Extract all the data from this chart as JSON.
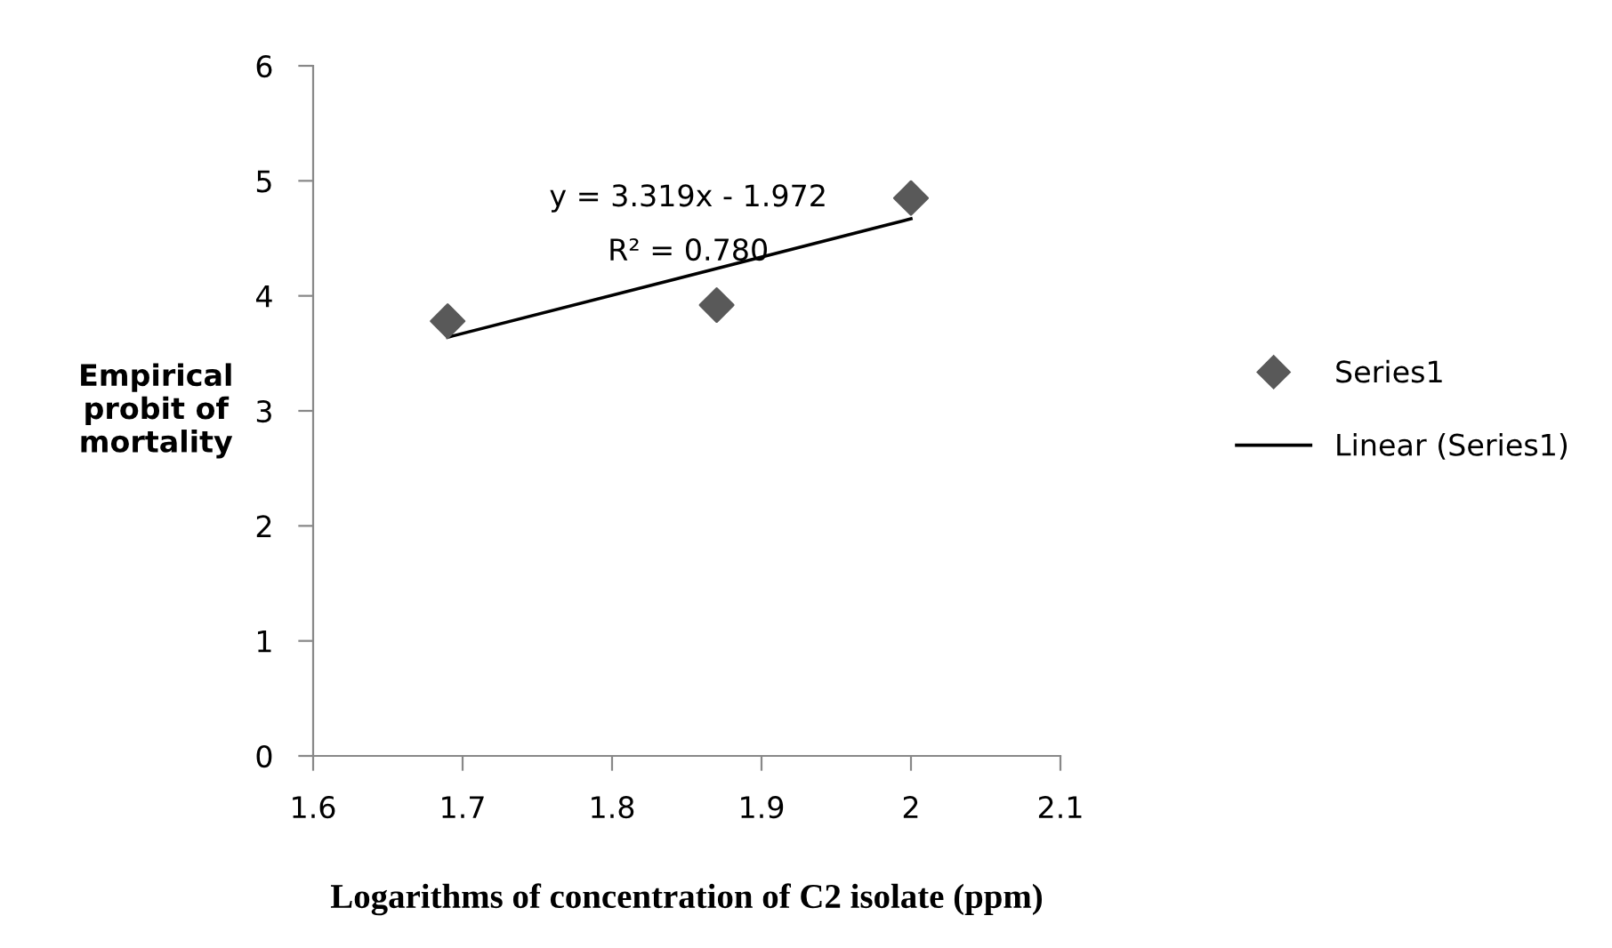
{
  "chart_data": {
    "type": "scatter",
    "xlabel": "Logarithms of concentration of C2 isolate (ppm)",
    "ylabel": "Empirical\nprobit of\nmortality",
    "series": [
      {
        "name": "Series1",
        "color": "#595959",
        "marker": "diamond",
        "x": [
          1.69,
          1.87,
          2.0
        ],
        "values": [
          3.78,
          3.92,
          4.85
        ]
      },
      {
        "name": "Linear (Series1)",
        "type": "line",
        "color": "#000000",
        "marker": "none",
        "line_style": "solid",
        "x": [
          1.69,
          2.0
        ],
        "values": [
          3.64,
          4.67
        ]
      }
    ],
    "annotations": [
      "y = 3.319x - 1.972",
      "R² = 0.780"
    ],
    "xlim": [
      1.6,
      2.1
    ],
    "xticks": [
      1.6,
      1.7,
      1.8,
      1.9,
      2,
      2.1
    ],
    "ylim": [
      0,
      6
    ],
    "yticks": [
      0,
      1,
      2,
      3,
      4,
      5,
      6
    ],
    "grid": false,
    "legend": "right"
  }
}
